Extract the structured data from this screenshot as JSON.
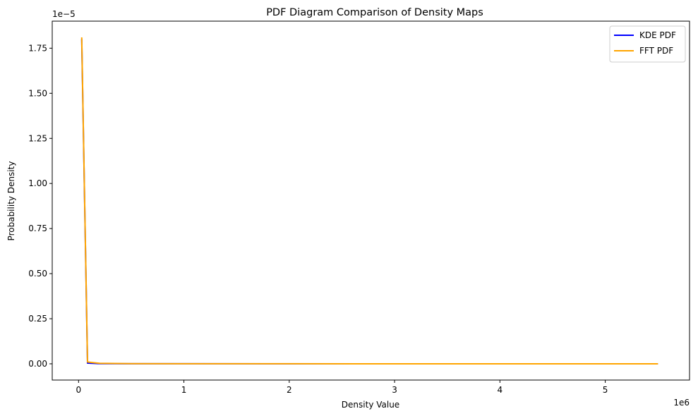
{
  "chart_data": {
    "type": "line",
    "title": "PDF Diagram Comparison of Density Maps",
    "xlabel": "Density Value",
    "ylabel": "Probability Density",
    "x_offset_label": "1e6",
    "y_offset_label": "1e−5",
    "xlim": [
      -250000,
      5800000
    ],
    "ylim": [
      -9e-07,
      1.9e-05
    ],
    "x_ticks": [
      {
        "value": 0,
        "label": "0"
      },
      {
        "value": 1000000,
        "label": "1"
      },
      {
        "value": 2000000,
        "label": "2"
      },
      {
        "value": 3000000,
        "label": "3"
      },
      {
        "value": 4000000,
        "label": "4"
      },
      {
        "value": 5000000,
        "label": "5"
      }
    ],
    "y_ticks": [
      {
        "value": 0,
        "label": "0.00"
      },
      {
        "value": 2.5e-06,
        "label": "0.25"
      },
      {
        "value": 5e-06,
        "label": "0.50"
      },
      {
        "value": 7.5e-06,
        "label": "0.75"
      },
      {
        "value": 1e-05,
        "label": "1.00"
      },
      {
        "value": 1.25e-05,
        "label": "1.25"
      },
      {
        "value": 1.5e-05,
        "label": "1.50"
      },
      {
        "value": 1.75e-05,
        "label": "1.75"
      }
    ],
    "grid": false,
    "legend_position": "top-right",
    "series": [
      {
        "name": "KDE PDF",
        "color": "#0000ff",
        "x": [
          30000,
          85000,
          200000,
          500000,
          1000000,
          2000000,
          3000000,
          4000000,
          5000000,
          5500000
        ],
        "y": [
          1.8e-05,
          4e-08,
          1e-08,
          5e-09,
          2e-09,
          1e-09,
          5e-10,
          3e-10,
          2e-10,
          1e-10
        ]
      },
      {
        "name": "FFT PDF",
        "color": "#ffa500",
        "x": [
          30000,
          85000,
          200000,
          500000,
          1000000,
          2000000,
          3000000,
          4000000,
          5000000,
          5500000
        ],
        "y": [
          1.81e-05,
          1e-07,
          3e-08,
          1e-08,
          5e-09,
          2e-09,
          1e-09,
          5e-10,
          3e-10,
          2e-10
        ]
      }
    ]
  }
}
